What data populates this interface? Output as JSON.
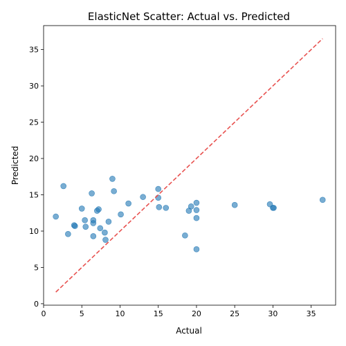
{
  "chart_data": {
    "type": "scatter",
    "title": "ElasticNet Scatter: Actual vs. Predicted",
    "xlabel": "Actual",
    "ylabel": "Predicted",
    "xlim": [
      0,
      38.2
    ],
    "ylim": [
      -0.2,
      38.3
    ],
    "xticks": [
      0,
      5,
      10,
      15,
      20,
      25,
      30,
      35
    ],
    "yticks": [
      0,
      5,
      10,
      15,
      20,
      25,
      30,
      35
    ],
    "grid": false,
    "point_color": "#1f77b4",
    "reference_line": {
      "x": [
        1.6,
        36.5
      ],
      "y": [
        1.6,
        36.5
      ],
      "color": "#e8514f",
      "style": "dashed"
    },
    "points": [
      {
        "x": 1.6,
        "y": 12.0
      },
      {
        "x": 2.6,
        "y": 16.2
      },
      {
        "x": 3.2,
        "y": 9.6
      },
      {
        "x": 4.0,
        "y": 10.8
      },
      {
        "x": 4.1,
        "y": 10.7
      },
      {
        "x": 5.0,
        "y": 13.1
      },
      {
        "x": 5.4,
        "y": 11.5
      },
      {
        "x": 5.5,
        "y": 10.6
      },
      {
        "x": 6.3,
        "y": 15.2
      },
      {
        "x": 6.5,
        "y": 11.5
      },
      {
        "x": 6.5,
        "y": 11.1
      },
      {
        "x": 6.5,
        "y": 9.3
      },
      {
        "x": 7.0,
        "y": 12.8
      },
      {
        "x": 7.2,
        "y": 13.0
      },
      {
        "x": 7.4,
        "y": 10.4
      },
      {
        "x": 8.0,
        "y": 9.8
      },
      {
        "x": 8.1,
        "y": 8.8
      },
      {
        "x": 8.5,
        "y": 11.3
      },
      {
        "x": 9.0,
        "y": 17.2
      },
      {
        "x": 9.2,
        "y": 15.5
      },
      {
        "x": 10.1,
        "y": 12.3
      },
      {
        "x": 11.1,
        "y": 13.8
      },
      {
        "x": 13.0,
        "y": 14.7
      },
      {
        "x": 15.0,
        "y": 15.8
      },
      {
        "x": 15.0,
        "y": 14.6
      },
      {
        "x": 15.1,
        "y": 13.3
      },
      {
        "x": 16.0,
        "y": 13.2
      },
      {
        "x": 18.5,
        "y": 9.4
      },
      {
        "x": 19.0,
        "y": 12.8
      },
      {
        "x": 19.3,
        "y": 13.4
      },
      {
        "x": 20.0,
        "y": 13.9
      },
      {
        "x": 20.0,
        "y": 12.9
      },
      {
        "x": 20.0,
        "y": 11.8
      },
      {
        "x": 20.0,
        "y": 7.5
      },
      {
        "x": 25.0,
        "y": 13.6
      },
      {
        "x": 29.6,
        "y": 13.7
      },
      {
        "x": 30.0,
        "y": 13.2
      },
      {
        "x": 30.1,
        "y": 13.2
      },
      {
        "x": 36.5,
        "y": 14.3
      }
    ]
  }
}
